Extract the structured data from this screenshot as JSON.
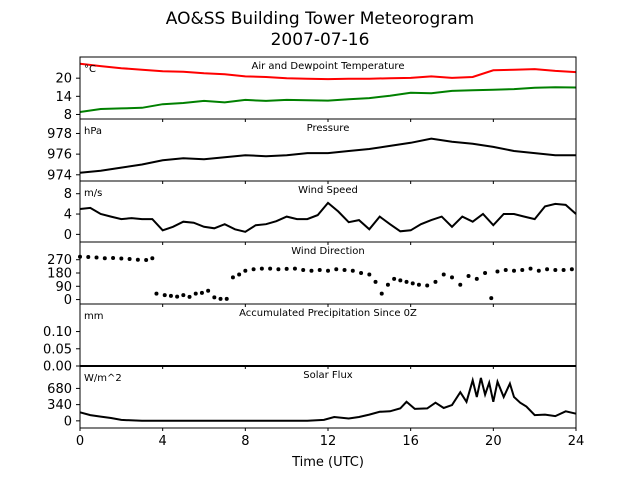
{
  "title": "AO&SS Building Tower Meteorogram",
  "subtitle": "2007-07-16",
  "chart_data": {
    "type": "line",
    "xlabel": "Time (UTC)",
    "xlim": [
      0,
      24
    ],
    "xticks": [
      0,
      4,
      8,
      12,
      16,
      20,
      24
    ],
    "panels": [
      {
        "key": "temp",
        "title": "Air and Dewpoint Temperature",
        "unit": "°C",
        "ylim": [
          6.5,
          27
        ],
        "yticks": [
          8,
          14,
          20
        ],
        "series": [
          {
            "color": "#ff0000",
            "style": "line",
            "x": [
              0,
              1,
              2,
              3,
              4,
              5,
              6,
              7,
              8,
              9,
              10,
              11,
              12,
              13,
              14,
              15,
              16,
              17,
              18,
              19,
              20,
              21,
              22,
              23,
              24
            ],
            "y": [
              24.8,
              24.0,
              23.3,
              22.8,
              22.3,
              22.1,
              21.6,
              21.3,
              20.6,
              20.4,
              20.0,
              19.8,
              19.7,
              19.8,
              19.8,
              20.0,
              20.1,
              20.6,
              20.1,
              20.4,
              22.6,
              22.8,
              23.0,
              22.4,
              22.0
            ]
          },
          {
            "color": "#008000",
            "style": "line",
            "x": [
              0,
              1,
              2,
              3,
              4,
              5,
              6,
              7,
              8,
              9,
              10,
              11,
              12,
              13,
              14,
              15,
              16,
              17,
              18,
              19,
              20,
              21,
              22,
              23,
              24
            ],
            "y": [
              8.8,
              9.8,
              10.0,
              10.2,
              11.4,
              11.8,
              12.5,
              12.0,
              12.8,
              12.5,
              12.8,
              12.7,
              12.6,
              13.0,
              13.4,
              14.2,
              15.2,
              15.0,
              15.8,
              16.0,
              16.2,
              16.4,
              16.8,
              17.0,
              16.9
            ]
          }
        ]
      },
      {
        "key": "pres",
        "title": "Pressure",
        "unit": "hPa",
        "ylim": [
          973.4,
          979.4
        ],
        "yticks": [
          974,
          976,
          978
        ],
        "series": [
          {
            "color": "#000000",
            "style": "line",
            "x": [
              0,
              1,
              2,
              3,
              4,
              5,
              6,
              7,
              8,
              9,
              10,
              11,
              12,
              13,
              14,
              15,
              16,
              17,
              18,
              19,
              20,
              21,
              22,
              23,
              24
            ],
            "y": [
              974.2,
              974.4,
              974.7,
              975.0,
              975.4,
              975.6,
              975.5,
              975.7,
              975.9,
              975.8,
              975.9,
              976.1,
              976.1,
              976.3,
              976.5,
              976.8,
              977.1,
              977.5,
              977.2,
              977.0,
              976.7,
              976.3,
              976.1,
              975.9,
              975.9
            ]
          }
        ]
      },
      {
        "key": "wspd",
        "title": "Wind Speed",
        "unit": "m/s",
        "ylim": [
          -1.5,
          10.5
        ],
        "yticks": [
          0,
          4,
          8
        ],
        "series": [
          {
            "color": "#000000",
            "style": "line",
            "x": [
              0,
              0.5,
              1,
              1.5,
              2,
              2.5,
              3,
              3.5,
              4,
              4.5,
              5,
              5.5,
              6,
              6.5,
              7,
              7.5,
              8,
              8.5,
              9,
              9.5,
              10,
              10.5,
              11,
              11.5,
              12,
              12.5,
              13,
              13.5,
              14,
              14.5,
              15,
              15.5,
              16,
              16.5,
              17,
              17.5,
              18,
              18.5,
              19,
              19.5,
              20,
              20.5,
              21,
              21.5,
              22,
              22.5,
              23,
              23.5,
              24
            ],
            "y": [
              5,
              5.2,
              4,
              3.5,
              3,
              3.2,
              3,
              3,
              0.8,
              1.5,
              2.5,
              2.3,
              1.5,
              1.2,
              2,
              1,
              0.5,
              1.8,
              2,
              2.6,
              3.5,
              3,
              3,
              3.8,
              6.2,
              4.5,
              2.4,
              2.8,
              1,
              3.5,
              2,
              0.6,
              0.8,
              2,
              2.8,
              3.5,
              1.5,
              3.5,
              2.5,
              4,
              1.8,
              4,
              4,
              3.5,
              3,
              5.5,
              6,
              5.8,
              4
            ]
          }
        ]
      },
      {
        "key": "wdir",
        "title": "Wind Direction",
        "unit": "",
        "ylim": [
          -30,
          390
        ],
        "yticks": [
          0,
          90,
          180,
          270
        ],
        "series": [
          {
            "color": "#000000",
            "style": "scatter",
            "x": [
              0,
              0.4,
              0.8,
              1.2,
              1.6,
              2,
              2.4,
              2.8,
              3.2,
              3.5,
              3.7,
              4.1,
              4.4,
              4.7,
              5,
              5.3,
              5.6,
              5.9,
              6.2,
              6.5,
              6.8,
              7.1,
              7.4,
              7.7,
              8,
              8.4,
              8.8,
              9.2,
              9.6,
              10,
              10.4,
              10.8,
              11.2,
              11.6,
              12,
              12.4,
              12.8,
              13.2,
              13.6,
              14,
              14.3,
              14.6,
              14.9,
              15.2,
              15.5,
              15.8,
              16.1,
              16.4,
              16.8,
              17.2,
              17.6,
              18,
              18.4,
              18.8,
              19.2,
              19.6,
              19.9,
              20.2,
              20.6,
              21,
              21.4,
              21.8,
              22.2,
              22.6,
              23,
              23.4,
              23.8
            ],
            "y": [
              290,
              288,
              285,
              280,
              282,
              278,
              275,
              270,
              268,
              280,
              40,
              30,
              25,
              20,
              30,
              18,
              40,
              45,
              60,
              15,
              5,
              5,
              150,
              170,
              195,
              205,
              210,
              210,
              205,
              208,
              210,
              200,
              195,
              200,
              195,
              205,
              200,
              195,
              180,
              170,
              120,
              40,
              100,
              140,
              130,
              120,
              110,
              100,
              95,
              120,
              170,
              150,
              100,
              160,
              140,
              180,
              10,
              190,
              200,
              195,
              200,
              210,
              195,
              205,
              200,
              200,
              205
            ]
          }
        ]
      },
      {
        "key": "prec",
        "title": "Accumulated Precipitation Since 0Z",
        "unit": "mm",
        "ylim": [
          0,
          0.18
        ],
        "yticks": [
          0.0,
          0.05,
          0.1
        ],
        "series": [
          {
            "color": "#000000",
            "style": "line",
            "x": [
              0,
              24
            ],
            "y": [
              0,
              0
            ]
          }
        ]
      },
      {
        "key": "solar",
        "title": "Solar Flux",
        "unit": "W/m^2",
        "ylim": [
          -150,
          1150
        ],
        "yticks": [
          0,
          340,
          680
        ],
        "series": [
          {
            "color": "#000000",
            "style": "line",
            "x": [
              0,
              0.5,
              1,
              1.5,
              2,
              3,
              4,
              5,
              6,
              7,
              8,
              9,
              10,
              11,
              11.8,
              12.3,
              13,
              13.5,
              14,
              14.5,
              15,
              15.5,
              15.8,
              16.2,
              16.8,
              17.2,
              17.6,
              18,
              18.4,
              18.7,
              19,
              19.2,
              19.4,
              19.6,
              19.8,
              20,
              20.2,
              20.5,
              20.8,
              21,
              21.3,
              21.6,
              22,
              22.5,
              23,
              23.5,
              24
            ],
            "y": [
              180,
              120,
              90,
              60,
              20,
              0,
              0,
              0,
              0,
              0,
              0,
              0,
              0,
              0,
              20,
              80,
              50,
              80,
              130,
              190,
              200,
              260,
              400,
              250,
              260,
              380,
              270,
              330,
              600,
              400,
              850,
              500,
              900,
              550,
              800,
              400,
              820,
              500,
              780,
              500,
              380,
              300,
              120,
              130,
              100,
              200,
              150
            ]
          }
        ]
      }
    ]
  }
}
